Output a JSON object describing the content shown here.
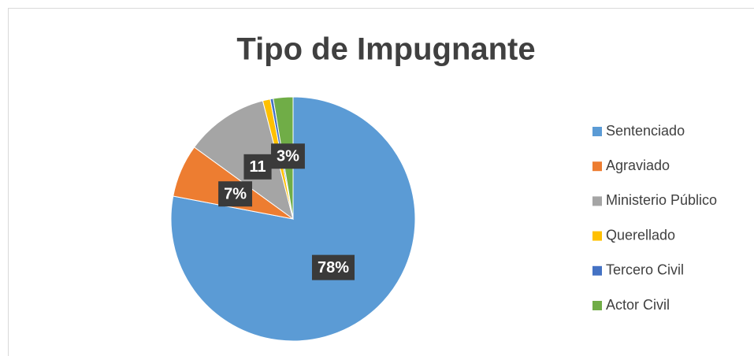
{
  "chart_data": {
    "type": "pie",
    "title": "Tipo de Impugnante",
    "categories": [
      "Sentenciado",
      "Agraviado",
      "Ministerio Público",
      "Querellado",
      "Tercero Civil",
      "Actor Civil"
    ],
    "values": [
      78,
      7,
      11,
      1,
      0.4,
      2.6
    ],
    "value_labels": [
      "78%",
      "7%",
      "11",
      null,
      null,
      "3%"
    ],
    "colors": [
      "#5b9bd5",
      "#ed7d31",
      "#a5a5a5",
      "#ffc000",
      "#4472c4",
      "#70ad47"
    ],
    "legend": "right"
  }
}
